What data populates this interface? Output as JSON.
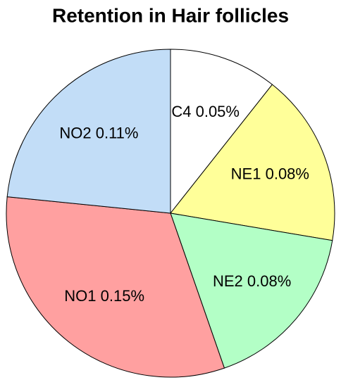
{
  "chart_data": {
    "type": "pie",
    "title": "Retention in Hair follicles",
    "categories": [
      "C4",
      "NE1",
      "NE2",
      "NO1",
      "NO2"
    ],
    "values": [
      0.05,
      0.08,
      0.08,
      0.15,
      0.11
    ],
    "value_labels": [
      "0.05%",
      "0.08%",
      "0.08%",
      "0.15%",
      "0.11%"
    ],
    "colors": [
      "#ffffff",
      "#ffff99",
      "#b3ffc6",
      "#ffa0a0",
      "#c2ddf7"
    ]
  }
}
